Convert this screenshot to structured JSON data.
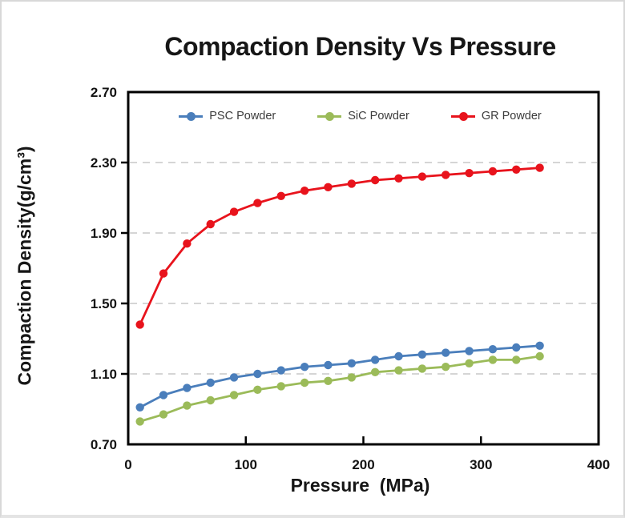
{
  "figure": {
    "title": "Compaction Density Vs Pressure",
    "x_axis_label": "Pressure  (MPa)",
    "y_axis_label": "Compaction Density(g/cm³)"
  },
  "chart_data": {
    "type": "line",
    "title": "Compaction Density Vs Pressure",
    "xlabel": "Pressure  (MPa)",
    "ylabel": "Compaction Density(g/cm³)",
    "x": [
      10,
      30,
      50,
      70,
      90,
      110,
      130,
      150,
      170,
      190,
      210,
      230,
      250,
      270,
      290,
      310,
      330,
      350
    ],
    "series": [
      {
        "name": "PSC Powder",
        "color": "#4a7ebb",
        "values": [
          0.91,
          0.98,
          1.02,
          1.05,
          1.08,
          1.1,
          1.12,
          1.14,
          1.15,
          1.16,
          1.18,
          1.2,
          1.21,
          1.22,
          1.23,
          1.24,
          1.25,
          1.26
        ]
      },
      {
        "name": "SiC Powder",
        "color": "#9bbb59",
        "values": [
          0.83,
          0.87,
          0.92,
          0.95,
          0.98,
          1.01,
          1.03,
          1.05,
          1.06,
          1.08,
          1.11,
          1.12,
          1.13,
          1.14,
          1.16,
          1.18,
          1.18,
          1.2
        ]
      },
      {
        "name": "GR Powder",
        "color": "#e8131c",
        "values": [
          1.38,
          1.67,
          1.84,
          1.95,
          2.02,
          2.07,
          2.11,
          2.14,
          2.16,
          2.18,
          2.2,
          2.21,
          2.22,
          2.23,
          2.24,
          2.25,
          2.26,
          2.27
        ]
      }
    ],
    "xlim": [
      0,
      400
    ],
    "ylim": [
      0.7,
      2.7
    ],
    "x_tick_labels": [
      "0",
      "100",
      "200",
      "300",
      "400"
    ],
    "y_tick_labels": [
      "0.70",
      "1.10",
      "1.50",
      "1.90",
      "2.30",
      "2.70"
    ],
    "gridline_values": [
      1.1,
      1.5,
      1.9,
      2.3
    ],
    "grid": "horizontal-dashed",
    "legend_position": "top-inside-horizontal",
    "frame_color": "#000000",
    "gridline_color": "#c7c7c7"
  }
}
